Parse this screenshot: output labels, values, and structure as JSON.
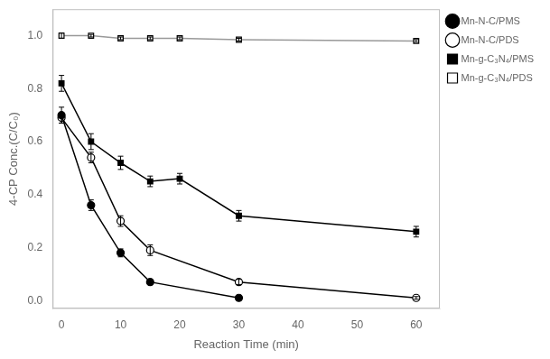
{
  "chart_data": {
    "type": "line",
    "xlabel": "Reaction Time (min)",
    "ylabel": "4-CP Conc.(C/C₀)",
    "xlim": [
      -1.5,
      64
    ],
    "ylim": [
      -0.03,
      1.1
    ],
    "xticks": [
      0,
      10,
      20,
      30,
      40,
      50,
      60
    ],
    "yticks": [
      {
        "value": 0.0,
        "label": "0.0"
      },
      0.2,
      0.4,
      0.6,
      0.8,
      {
        "value": 1.0,
        "label": "1.0"
      }
    ],
    "grid": false,
    "legend": "upper right",
    "series": [
      {
        "name": "Mn-N-C/PMS",
        "color": "#000000",
        "marker": "circle",
        "x": [
          0,
          5,
          10,
          15,
          30
        ],
        "values": [
          0.7,
          0.36,
          0.18,
          0.07,
          0.01
        ],
        "yerr": [
          0.03,
          0.02,
          0.015,
          0.01,
          0.005
        ]
      },
      {
        "name": "Mn-N-C/PDS",
        "color": "#000000",
        "marker": "open_circle",
        "x": [
          0,
          5,
          10,
          15,
          30,
          60
        ],
        "values": [
          0.69,
          0.54,
          0.3,
          0.19,
          0.07,
          0.01
        ],
        "yerr": [
          0.02,
          0.02,
          0.02,
          0.02,
          0.01,
          0.005
        ]
      },
      {
        "name": "Mn-g-C₃N₄/PMS",
        "color": "#000000",
        "marker": "square",
        "x": [
          0,
          5,
          10,
          15,
          20,
          30,
          60
        ],
        "values": [
          0.82,
          0.6,
          0.52,
          0.45,
          0.46,
          0.32,
          0.26
        ],
        "yerr": [
          0.03,
          0.03,
          0.025,
          0.02,
          0.02,
          0.02,
          0.02
        ]
      },
      {
        "name": "Mn-g-C₃N₄/PDS",
        "color": "#999999",
        "marker": "open_square",
        "x": [
          0,
          5,
          10,
          15,
          20,
          30,
          60
        ],
        "values": [
          1.0,
          1.0,
          0.99,
          0.99,
          0.99,
          0.985,
          0.98
        ],
        "yerr": [
          0.01,
          0.005,
          0.005,
          0.005,
          0.005,
          0.005,
          0.005
        ]
      }
    ]
  }
}
